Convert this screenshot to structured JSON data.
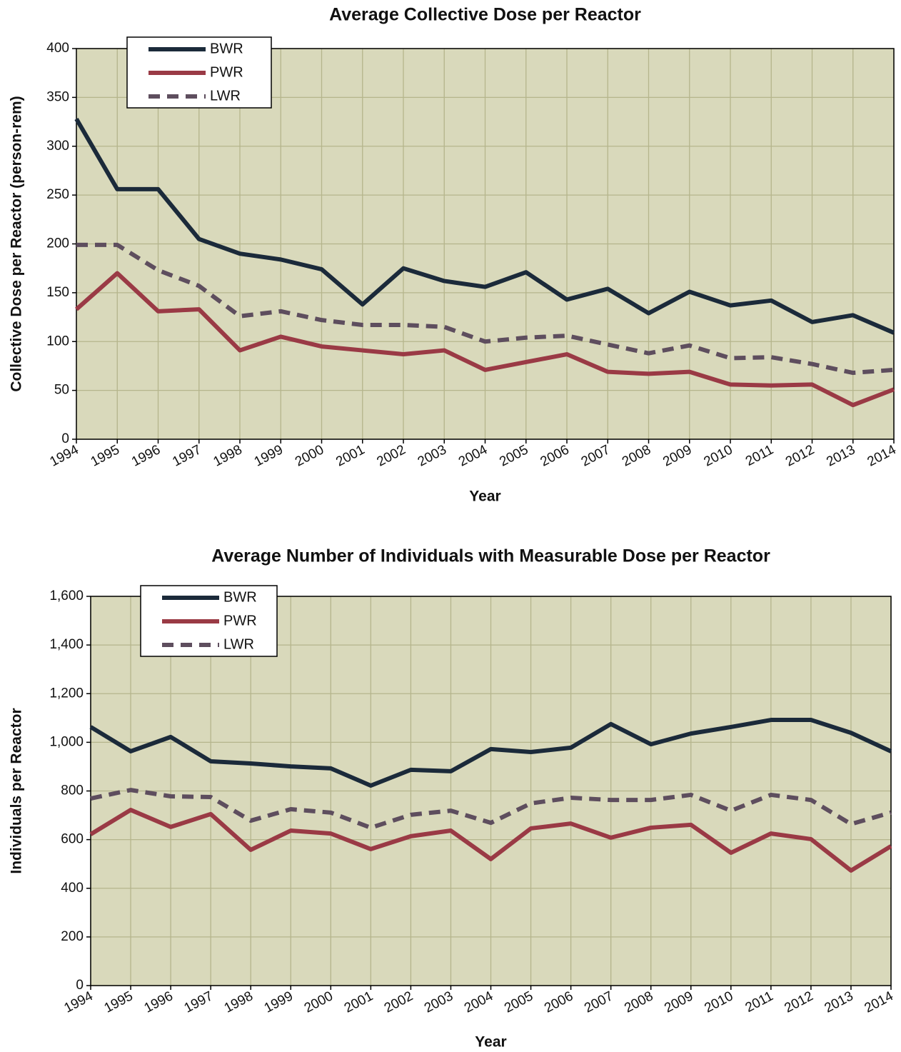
{
  "chart_data": [
    {
      "type": "line",
      "title": "Average Collective Dose per Reactor",
      "x_label": "Year",
      "y_label": "Collective Dose per Reactor (person-rem)",
      "categories": [
        "1994",
        "1995",
        "1996",
        "1997",
        "1998",
        "1999",
        "2000",
        "2001",
        "2002",
        "2003",
        "2004",
        "2005",
        "2006",
        "2007",
        "2008",
        "2009",
        "2010",
        "2011",
        "2012",
        "2013",
        "2014"
      ],
      "series": [
        {
          "name": "BWR",
          "color": "#1b2a3a",
          "values": [
            328,
            256,
            256,
            205,
            190,
            184,
            174,
            138,
            175,
            162,
            156,
            171,
            143,
            154,
            129,
            151,
            137,
            142,
            120,
            127,
            109
          ]
        },
        {
          "name": "PWR",
          "color": "#9a3a45",
          "values": [
            133,
            170,
            131,
            133,
            91,
            105,
            95,
            91,
            87,
            91,
            71,
            79,
            87,
            69,
            67,
            69,
            56,
            55,
            56,
            35,
            51
          ]
        },
        {
          "name": "LWR",
          "color": "#5e4e5e",
          "dashed": true,
          "values": [
            199,
            199,
            173,
            157,
            126,
            131,
            122,
            117,
            117,
            115,
            100,
            104,
            106,
            97,
            88,
            96,
            83,
            84,
            77,
            68,
            71
          ]
        }
      ],
      "ylim": [
        0,
        400
      ],
      "yticks": [
        0,
        50,
        100,
        150,
        200,
        250,
        300,
        350,
        400
      ],
      "grid": true,
      "legend": "top-left"
    },
    {
      "type": "line",
      "title": "Average Number of Individuals with Measurable Dose per Reactor",
      "x_label": "Year",
      "y_label": "Individuals per Reactor",
      "categories": [
        "1994",
        "1995",
        "1996",
        "1997",
        "1998",
        "1999",
        "2000",
        "2001",
        "2002",
        "2003",
        "2004",
        "2005",
        "2006",
        "2007",
        "2008",
        "2009",
        "2010",
        "2011",
        "2012",
        "2013",
        "2014"
      ],
      "series": [
        {
          "name": "BWR",
          "color": "#1b2a3a",
          "values": [
            1063,
            963,
            1022,
            922,
            913,
            901,
            893,
            822,
            887,
            881,
            972,
            960,
            978,
            1075,
            992,
            1036,
            1063,
            1092,
            1092,
            1039,
            963
          ]
        },
        {
          "name": "PWR",
          "color": "#9a3a45",
          "values": [
            622,
            722,
            652,
            705,
            558,
            637,
            625,
            561,
            614,
            637,
            520,
            646,
            666,
            608,
            649,
            661,
            546,
            625,
            602,
            473,
            573
          ]
        },
        {
          "name": "LWR",
          "color": "#5e4e5e",
          "dashed": true,
          "values": [
            769,
            804,
            778,
            775,
            678,
            725,
            711,
            649,
            702,
            719,
            669,
            749,
            772,
            763,
            763,
            784,
            719,
            784,
            763,
            664,
            711
          ]
        }
      ],
      "ylim": [
        0,
        1600
      ],
      "yticks": [
        0,
        200,
        400,
        600,
        800,
        {
          "value": 1000,
          "label": "1,000"
        },
        {
          "value": 1200,
          "label": "1,200"
        },
        {
          "value": 1400,
          "label": "1,400"
        },
        {
          "value": 1600,
          "label": "1,600"
        }
      ],
      "grid": true,
      "legend": "top-left"
    }
  ]
}
